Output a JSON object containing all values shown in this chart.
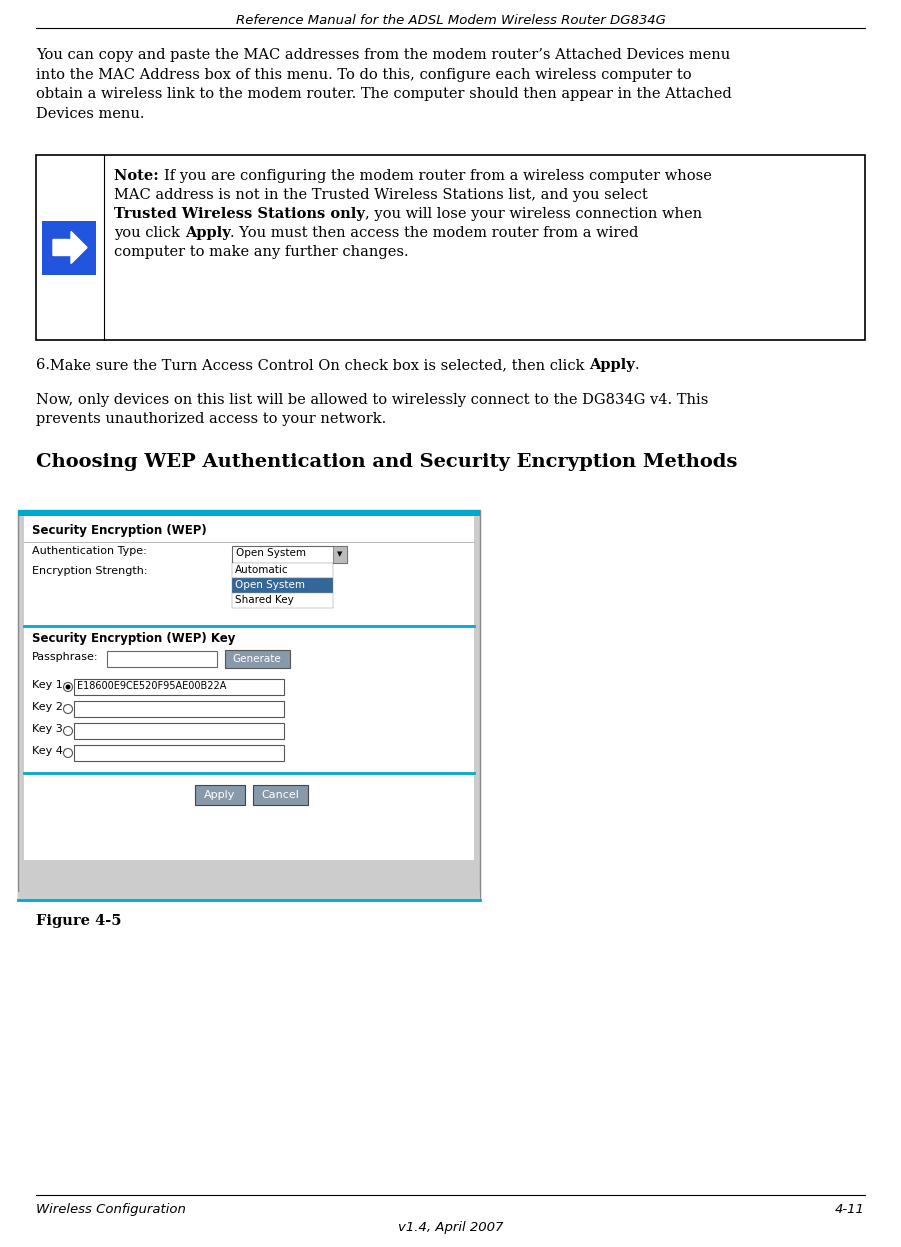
{
  "header_text": "Reference Manual for the ADSL Modem Wireless Router DG834G",
  "footer_left": "Wireless Configuration",
  "footer_right": "4-11",
  "footer_center": "v1.4, April 2007",
  "para1_lines": [
    "You can copy and paste the MAC addresses from the modem router’s Attached Devices menu",
    "into the MAC Address box of this menu. To do this, configure each wireless computer to",
    "obtain a wireless link to the modem router. The computer should then appear in the Attached",
    "Devices menu."
  ],
  "note_lines": [
    [
      [
        "Note: ",
        true
      ],
      [
        "If you are configuring the modem router from a wireless computer whose",
        false
      ]
    ],
    [
      [
        "MAC address is not in the Trusted Wireless Stations list, and you select",
        false
      ]
    ],
    [
      [
        "Trusted Wireless Stations only",
        true
      ],
      [
        ", you will lose your wireless connection when",
        false
      ]
    ],
    [
      [
        "you click ",
        false
      ],
      [
        "Apply",
        true
      ],
      [
        ". You must then access the modem router from a wired",
        false
      ]
    ],
    [
      [
        "computer to make any further changes.",
        false
      ]
    ]
  ],
  "step6_parts": [
    [
      "6. Make sure the Turn Access Control On check box is selected, then click ",
      false
    ],
    [
      "Apply",
      true
    ],
    [
      ".",
      false
    ]
  ],
  "para2_lines": [
    "Now, only devices on this list will be allowed to wirelessly connect to the DG834G v4. This",
    "prevents unauthorized access to your network."
  ],
  "section_title": "Choosing WEP Authentication and Security Encryption Methods",
  "figure_label": "Figure 4-5",
  "bg_color": "#ffffff",
  "text_color": "#000000",
  "arrow_blue": "#2255dd",
  "dropdown_selected_color": "#336699",
  "cyan_line": "#00aacc",
  "button_gray": "#8899aa"
}
